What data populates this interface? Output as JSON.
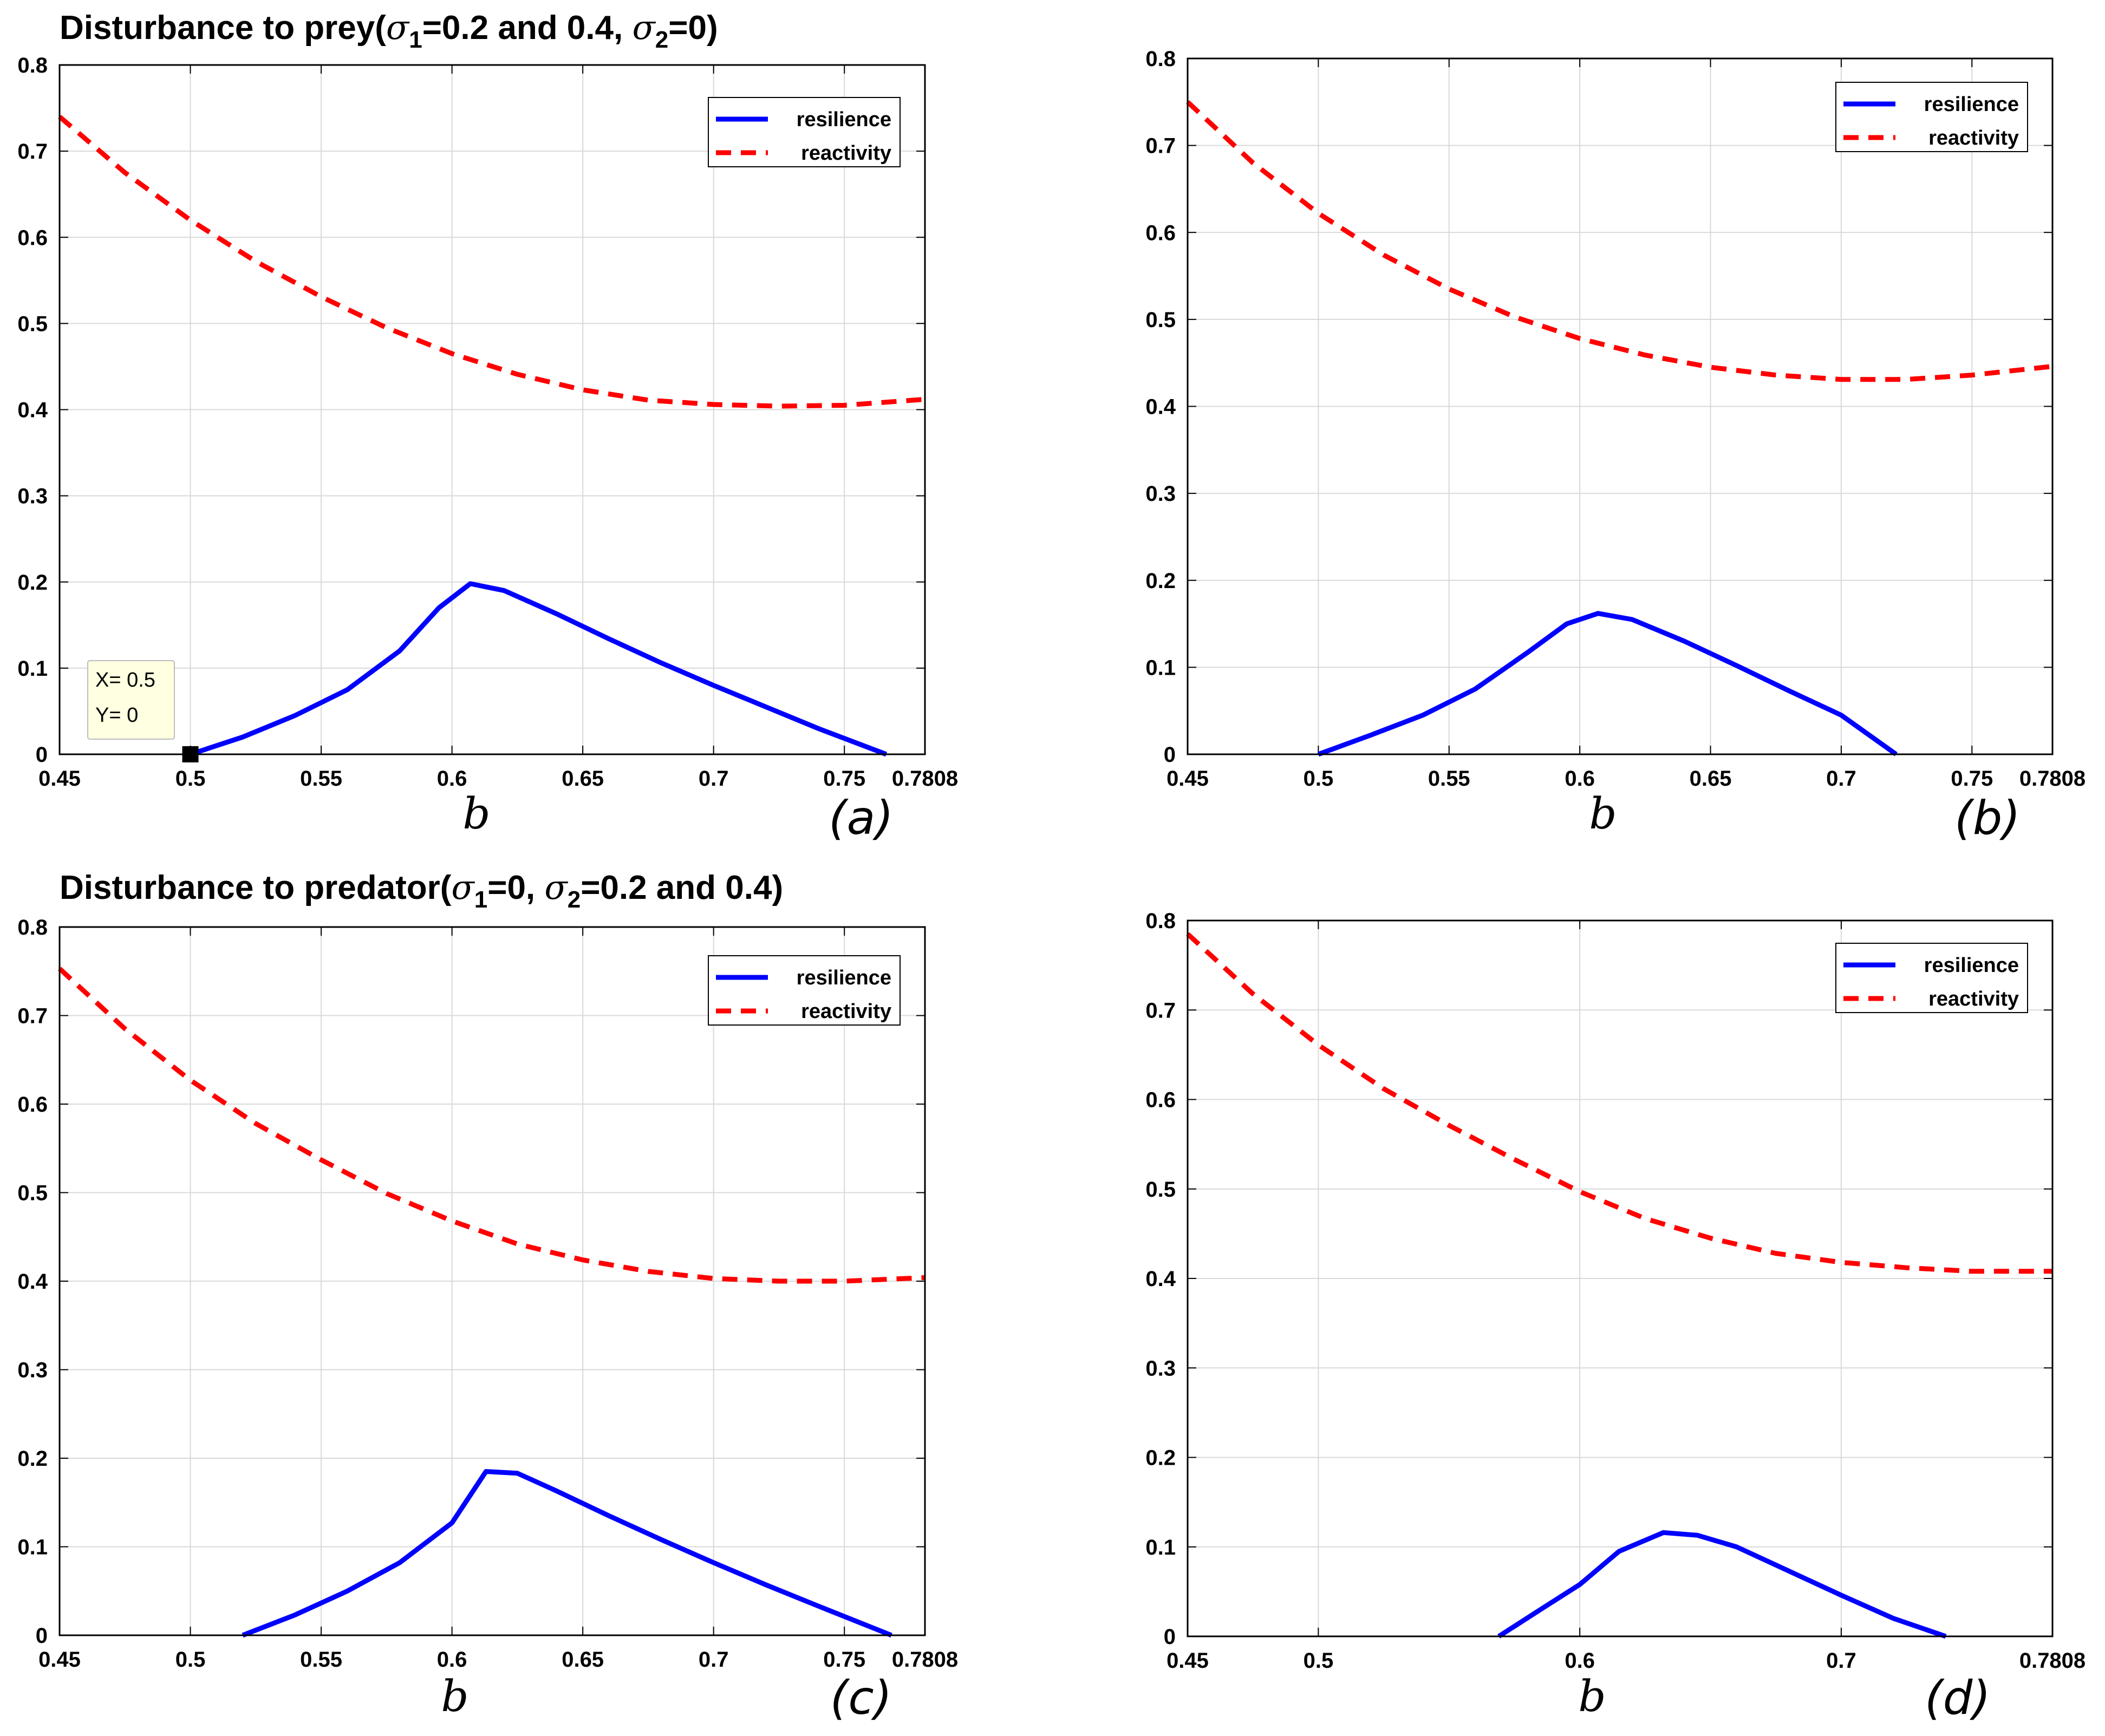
{
  "figure": {
    "section_titles": [
      {
        "prefix": "Disturbance to prey(",
        "sym1": "σ",
        "sub1": "1",
        "mid": "=0.2 and 0.4, ",
        "sym2": "σ",
        "sub2": "2",
        "suffix": "=0)"
      },
      {
        "prefix": "Disturbance to predator(",
        "sym1": "σ",
        "sub1": "1",
        "mid": "=0, ",
        "sym2": "σ",
        "sub2": "2",
        "suffix": "=0.2 and 0.4)"
      }
    ],
    "datatip": {
      "x_label": "X= 0.5",
      "y_label": "Y= 0",
      "x": 0.5,
      "y": 0
    }
  },
  "colors": {
    "resilience": "#0000ff",
    "reactivity": "#ff0000",
    "grid": "#d9d9d9",
    "tip_bg": "#ffffe1"
  },
  "chart_data": [
    {
      "type": "line",
      "panel_label": "(a)",
      "xlabel": "b",
      "ylabel": "",
      "xlim": [
        0.45,
        0.7808
      ],
      "ylim": [
        0,
        0.8
      ],
      "xticks": [
        0.45,
        0.5,
        0.55,
        0.6,
        0.65,
        0.7,
        0.75,
        0.7808
      ],
      "xtick_labels": [
        "0.45",
        "0.5",
        "0.55",
        "0.6",
        "0.65",
        "0.7",
        "0.75",
        "0.7808"
      ],
      "yticks": [
        0,
        0.1,
        0.2,
        0.3,
        0.4,
        0.5,
        0.6,
        0.7,
        0.8
      ],
      "ytick_labels": [
        "0",
        "0.1",
        "0.2",
        "0.3",
        "0.4",
        "0.5",
        "0.6",
        "0.7",
        "0.8"
      ],
      "grid": true,
      "legend": "top-right",
      "series": [
        {
          "name": "resilience",
          "style": "solid",
          "x": [
            0.5,
            0.52,
            0.54,
            0.56,
            0.58,
            0.595,
            0.607,
            0.62,
            0.64,
            0.66,
            0.68,
            0.7,
            0.72,
            0.74,
            0.766
          ],
          "y": [
            0,
            0.02,
            0.045,
            0.075,
            0.12,
            0.17,
            0.198,
            0.19,
            0.163,
            0.134,
            0.106,
            0.08,
            0.055,
            0.03,
            0
          ]
        },
        {
          "name": "reactivity",
          "style": "dashed",
          "x": [
            0.45,
            0.475,
            0.5,
            0.525,
            0.55,
            0.575,
            0.6,
            0.625,
            0.65,
            0.675,
            0.7,
            0.725,
            0.75,
            0.7808
          ],
          "y": [
            0.74,
            0.675,
            0.62,
            0.572,
            0.531,
            0.495,
            0.465,
            0.441,
            0.423,
            0.411,
            0.406,
            0.404,
            0.405,
            0.412
          ]
        }
      ]
    },
    {
      "type": "line",
      "panel_label": "(b)",
      "xlabel": "b",
      "ylabel": "",
      "xlim": [
        0.45,
        0.7808
      ],
      "ylim": [
        0,
        0.8
      ],
      "xticks": [
        0.45,
        0.5,
        0.55,
        0.6,
        0.65,
        0.7,
        0.75,
        0.7808
      ],
      "xtick_labels": [
        "0.45",
        "0.5",
        "0.55",
        "0.6",
        "0.65",
        "0.7",
        "0.75",
        "0.7808"
      ],
      "yticks": [
        0,
        0.1,
        0.2,
        0.3,
        0.4,
        0.5,
        0.6,
        0.7,
        0.8
      ],
      "ytick_labels": [
        "0",
        "0.1",
        "0.2",
        "0.3",
        "0.4",
        "0.5",
        "0.6",
        "0.7",
        "0.8"
      ],
      "grid": true,
      "legend": "top-right",
      "series": [
        {
          "name": "resilience",
          "style": "solid",
          "x": [
            0.5,
            0.52,
            0.54,
            0.56,
            0.58,
            0.595,
            0.607,
            0.62,
            0.64,
            0.66,
            0.68,
            0.7,
            0.721
          ],
          "y": [
            0,
            0.022,
            0.045,
            0.075,
            0.117,
            0.15,
            0.162,
            0.155,
            0.13,
            0.102,
            0.073,
            0.045,
            0
          ]
        },
        {
          "name": "reactivity",
          "style": "dashed",
          "x": [
            0.45,
            0.475,
            0.5,
            0.525,
            0.55,
            0.575,
            0.6,
            0.625,
            0.65,
            0.675,
            0.7,
            0.725,
            0.75,
            0.7808
          ],
          "y": [
            0.75,
            0.68,
            0.622,
            0.574,
            0.535,
            0.503,
            0.478,
            0.459,
            0.445,
            0.436,
            0.431,
            0.431,
            0.436,
            0.446
          ]
        }
      ]
    },
    {
      "type": "line",
      "panel_label": "(c)",
      "xlabel": "b",
      "ylabel": "",
      "xlim": [
        0.45,
        0.7808
      ],
      "ylim": [
        0,
        0.8
      ],
      "xticks": [
        0.45,
        0.5,
        0.55,
        0.6,
        0.65,
        0.7,
        0.75,
        0.7808
      ],
      "xtick_labels": [
        "0.45",
        "0.5",
        "0.55",
        "0.6",
        "0.65",
        "0.7",
        "0.75",
        "0.7808"
      ],
      "yticks": [
        0,
        0.1,
        0.2,
        0.3,
        0.4,
        0.5,
        0.6,
        0.7,
        0.8
      ],
      "ytick_labels": [
        "0",
        "0.1",
        "0.2",
        "0.3",
        "0.4",
        "0.5",
        "0.6",
        "0.7",
        "0.8"
      ],
      "grid": true,
      "legend": "top-right",
      "series": [
        {
          "name": "resilience",
          "style": "solid",
          "x": [
            0.52,
            0.54,
            0.56,
            0.58,
            0.6,
            0.613,
            0.625,
            0.64,
            0.66,
            0.68,
            0.7,
            0.72,
            0.74,
            0.768
          ],
          "y": [
            0,
            0.023,
            0.05,
            0.082,
            0.127,
            0.185,
            0.183,
            0.163,
            0.135,
            0.108,
            0.082,
            0.057,
            0.033,
            0
          ]
        },
        {
          "name": "reactivity",
          "style": "dashed",
          "x": [
            0.45,
            0.475,
            0.5,
            0.525,
            0.55,
            0.575,
            0.6,
            0.625,
            0.65,
            0.675,
            0.7,
            0.725,
            0.75,
            0.7808
          ],
          "y": [
            0.753,
            0.685,
            0.627,
            0.578,
            0.537,
            0.499,
            0.468,
            0.442,
            0.424,
            0.411,
            0.403,
            0.4,
            0.4,
            0.404
          ]
        }
      ]
    },
    {
      "type": "line",
      "panel_label": "(d)",
      "xlabel": "b",
      "ylabel": "",
      "xlim": [
        0.45,
        0.7808
      ],
      "ylim": [
        0,
        0.8
      ],
      "xticks": [
        0.45,
        0.5,
        0.6,
        0.7,
        0.7808
      ],
      "xtick_labels": [
        "0.45",
        "0.5",
        "0.6",
        "0.7",
        "0.7808"
      ],
      "yticks": [
        0,
        0.1,
        0.2,
        0.3,
        0.4,
        0.5,
        0.6,
        0.7,
        0.8
      ],
      "ytick_labels": [
        "0",
        "0.1",
        "0.2",
        "0.3",
        "0.4",
        "0.5",
        "0.6",
        "0.7",
        "0.8"
      ],
      "grid": true,
      "legend": "top-right",
      "series": [
        {
          "name": "resilience",
          "style": "solid",
          "x": [
            0.569,
            0.585,
            0.6,
            0.615,
            0.632,
            0.645,
            0.66,
            0.68,
            0.7,
            0.72,
            0.74
          ],
          "y": [
            0,
            0.03,
            0.058,
            0.095,
            0.116,
            0.113,
            0.1,
            0.073,
            0.046,
            0.02,
            0
          ]
        },
        {
          "name": "reactivity",
          "style": "dashed",
          "x": [
            0.45,
            0.475,
            0.5,
            0.525,
            0.55,
            0.575,
            0.6,
            0.625,
            0.65,
            0.675,
            0.7,
            0.725,
            0.75,
            0.7808
          ],
          "y": [
            0.785,
            0.718,
            0.661,
            0.612,
            0.571,
            0.533,
            0.497,
            0.467,
            0.445,
            0.428,
            0.418,
            0.412,
            0.408,
            0.408
          ]
        }
      ]
    }
  ]
}
